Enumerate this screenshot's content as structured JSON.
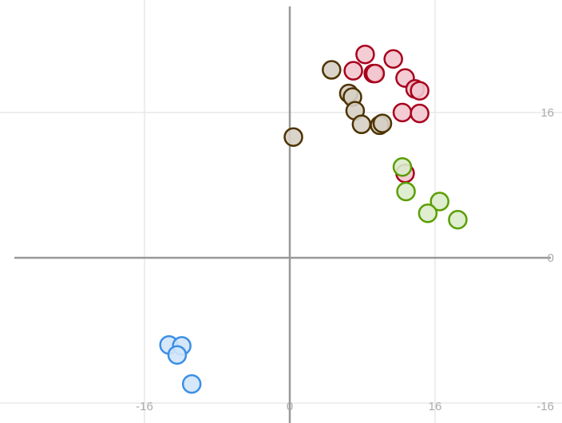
{
  "chart_data": {
    "type": "scatter",
    "title": "",
    "xlabel": "",
    "ylabel": "",
    "xlim": [
      -31,
      30
    ],
    "ylim": [
      -18,
      28
    ],
    "grid": true,
    "x_ticks": [
      -16,
      0,
      16
    ],
    "x_tick_labels": [
      "-16",
      "0",
      "16"
    ],
    "y_ticks": [
      -16,
      0,
      16
    ],
    "y_tick_labels": [
      "-16",
      "0",
      "16"
    ],
    "series": [
      {
        "color": "#a8001c",
        "fill": "#f2c6cf",
        "points": [
          [
            8.3,
            22.4
          ],
          [
            11.4,
            21.9
          ],
          [
            7.0,
            20.6
          ],
          [
            9.2,
            20.3
          ],
          [
            9.4,
            20.3
          ],
          [
            12.7,
            19.8
          ],
          [
            13.8,
            18.6
          ],
          [
            14.3,
            18.4
          ],
          [
            12.4,
            16.0
          ],
          [
            14.3,
            15.9
          ],
          [
            12.7,
            9.3
          ]
        ]
      },
      {
        "color": "#4d3300",
        "fill": "#d6cfc4",
        "points": [
          [
            4.6,
            20.7
          ],
          [
            6.5,
            18.1
          ],
          [
            6.9,
            17.7
          ],
          [
            7.2,
            16.2
          ],
          [
            7.9,
            14.7
          ],
          [
            9.9,
            14.6
          ],
          [
            10.2,
            14.8
          ],
          [
            0.4,
            13.3
          ]
        ]
      },
      {
        "color": "#5a9e00",
        "fill": "#dcebcb",
        "points": [
          [
            12.4,
            10.0
          ],
          [
            12.8,
            7.3
          ],
          [
            16.5,
            6.2
          ],
          [
            15.2,
            4.9
          ],
          [
            18.5,
            4.2
          ]
        ]
      },
      {
        "color": "#3b8fe6",
        "fill": "#d1e4f8",
        "points": [
          [
            -13.3,
            -9.6
          ],
          [
            -11.9,
            -9.7
          ],
          [
            -12.4,
            -10.7
          ],
          [
            -10.8,
            -13.9
          ]
        ]
      }
    ]
  }
}
